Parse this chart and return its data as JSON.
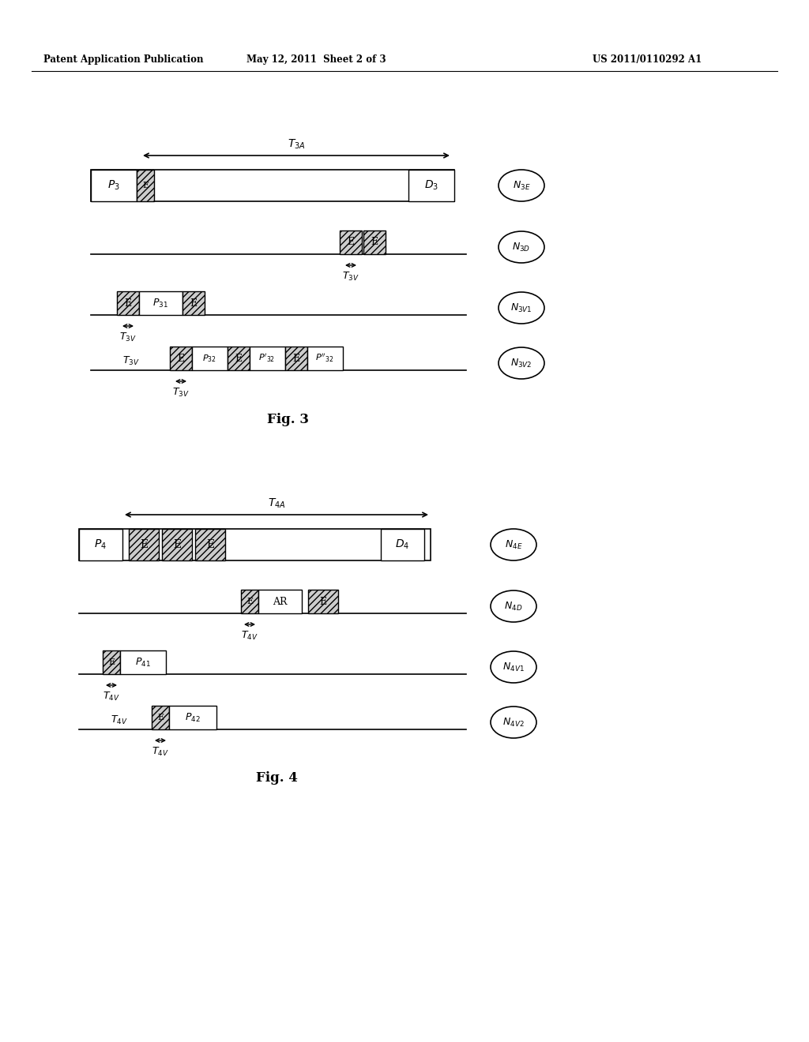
{
  "header_left": "Patent Application Publication",
  "header_mid": "May 12, 2011  Sheet 2 of 3",
  "header_right": "US 2011/0110292 A1",
  "fig3_label": "Fig. 3",
  "fig4_label": "Fig. 4",
  "bg_color": "#ffffff"
}
